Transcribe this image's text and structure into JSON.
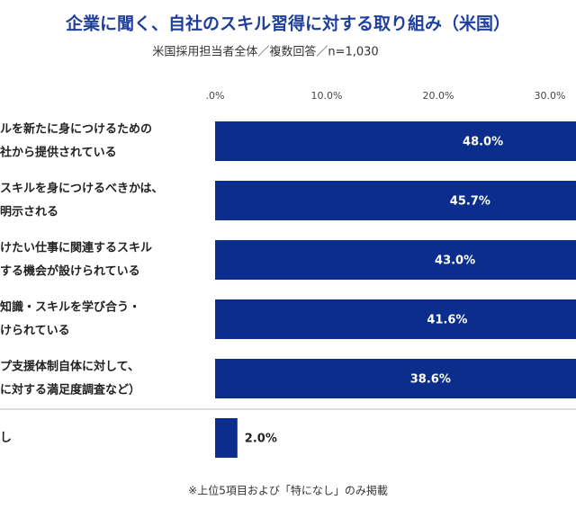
{
  "chart_data": {
    "type": "barh",
    "title": "企業に聞く、自社のスキル習得に対する取り組み（米国）",
    "subtitle": "米国採用担当者全体／複数回答／n=1,030",
    "note": "※上位5項目および「特になし」のみ掲載",
    "categories": [
      [
        "ルを新たに身につけるための",
        "社から提供されている"
      ],
      [
        "スキルを身につけるべきかは、",
        "明示される"
      ],
      [
        "けたい仕事に関連するスキル",
        "する機会が設けられている"
      ],
      [
        "知識・スキルを学び合う・",
        "けられている"
      ],
      [
        "プ支援体制自体に対して、",
        "に対する満足度調査など）"
      ],
      [
        "し"
      ]
    ],
    "values": [
      48.0,
      45.7,
      43.0,
      41.6,
      38.6,
      2.0
    ],
    "value_labels": [
      "48.0%",
      "45.7%",
      "43.0%",
      "41.6%",
      "38.6%",
      "2.0%"
    ],
    "color": "#0b2d8c",
    "xlim": [
      0,
      30
    ],
    "xticks": [
      {
        "value": 0,
        "label": ".0%"
      },
      {
        "value": 10,
        "label": "10.0%"
      },
      {
        "value": 20,
        "label": "20.0%"
      },
      {
        "value": 30,
        "label": "30.0%"
      }
    ]
  }
}
